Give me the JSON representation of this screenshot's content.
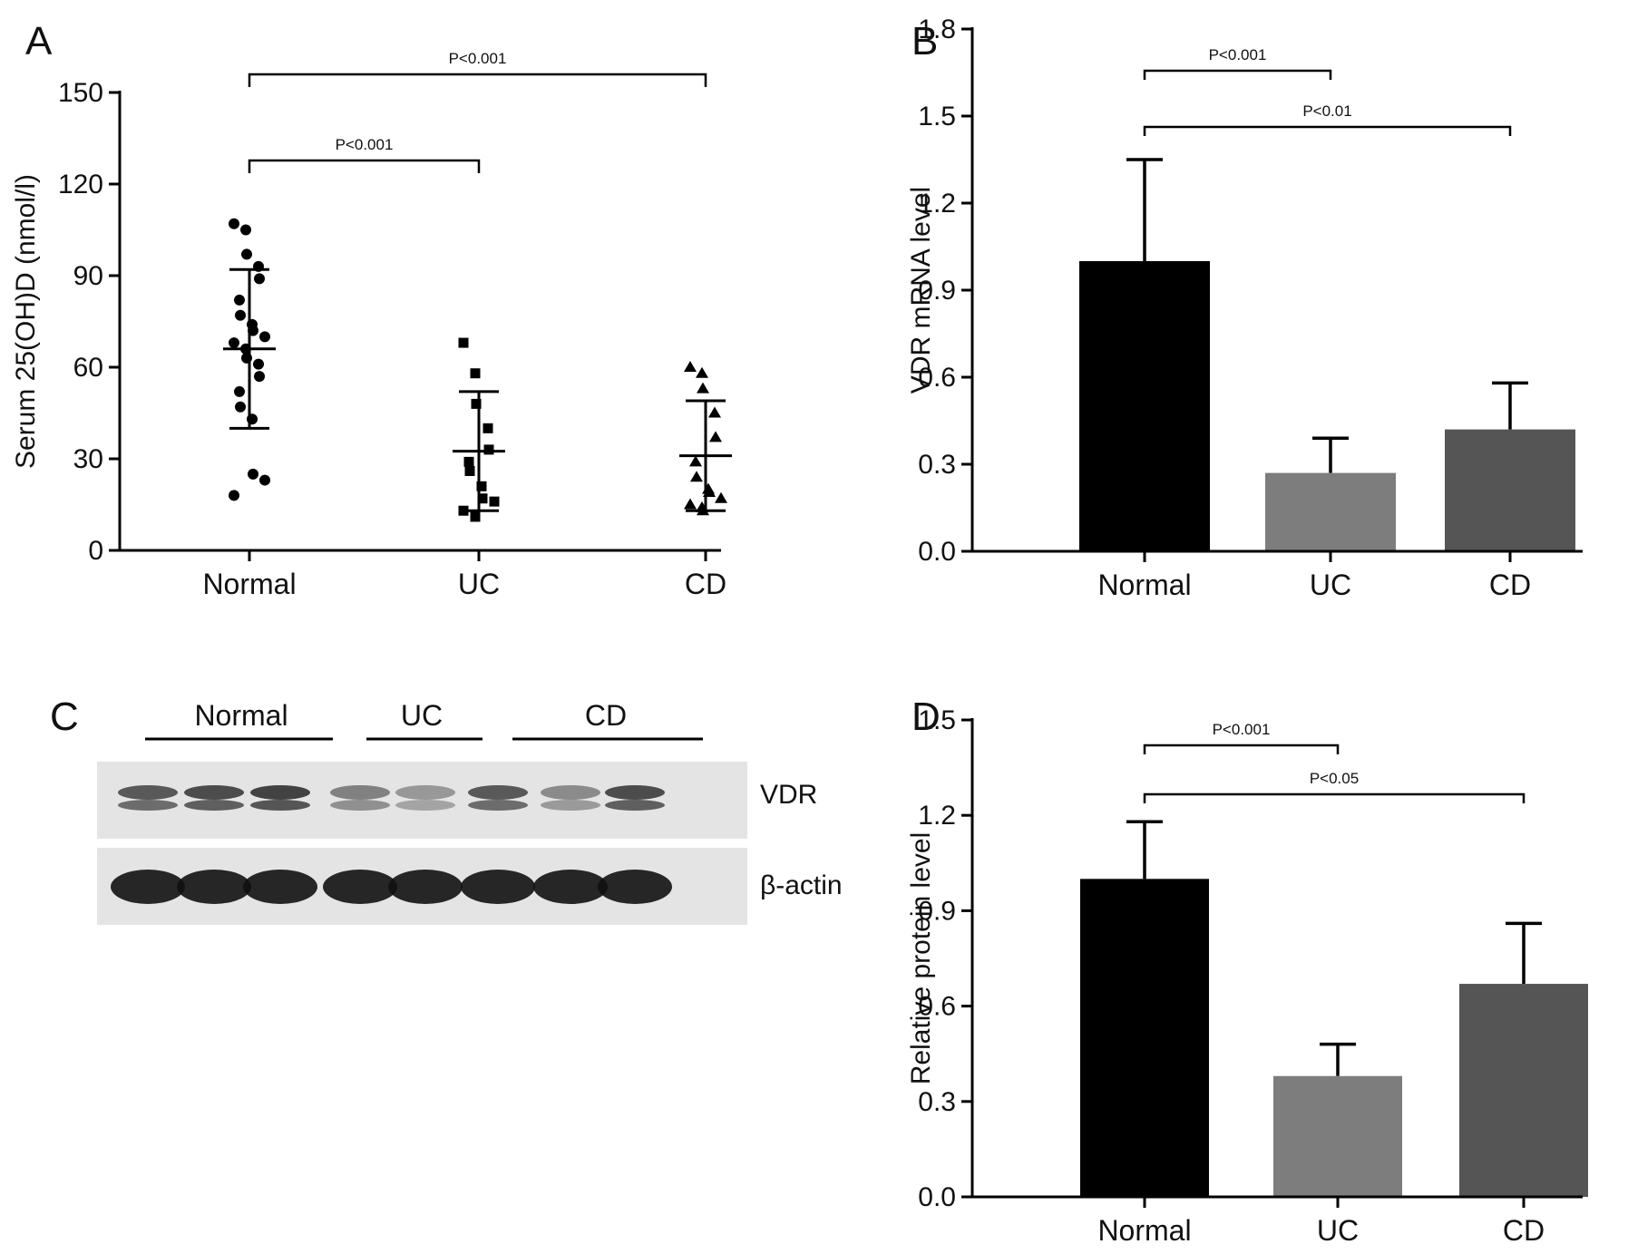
{
  "colors": {
    "axis": "#000000",
    "normal_bar": "#000000",
    "uc_bar": "#7d7d7d",
    "cd_bar": "#555555",
    "blot_bg": "#e4e4e4",
    "band": "#111111"
  },
  "chart_data": [
    {
      "panel": "A",
      "type": "scatter",
      "ylabel": "Serum 25(OH)D (nmol/l)",
      "ylim": [
        0,
        150
      ],
      "yticks": [
        "0",
        "30",
        "60",
        "90",
        "120",
        "150"
      ],
      "categories": [
        "Normal",
        "UC",
        "CD"
      ],
      "marker_shapes": [
        "circle",
        "square",
        "triangle"
      ],
      "points": [
        [
          107,
          105,
          97,
          93,
          89,
          82,
          77,
          74,
          72,
          70,
          68,
          66,
          63,
          61,
          57,
          52,
          47,
          43,
          25,
          23,
          18
        ],
        [
          68,
          58,
          48,
          40,
          33,
          29,
          26,
          21,
          17,
          16,
          13,
          11
        ],
        [
          60,
          58,
          53,
          45,
          37,
          29,
          24,
          20,
          19,
          17,
          15,
          14,
          13
        ]
      ],
      "mean": [
        66,
        32.5,
        31
      ],
      "sd": [
        26,
        19.5,
        18
      ],
      "significance": [
        {
          "from": 0,
          "to": 1,
          "label": "P<0.001"
        },
        {
          "from": 0,
          "to": 2,
          "label": "P<0.001"
        }
      ]
    },
    {
      "panel": "B",
      "type": "bar",
      "ylabel": "VDR mRNA level",
      "ylim": [
        0,
        1.8
      ],
      "yticks": [
        "0.0",
        "0.3",
        "0.6",
        "0.9",
        "1.2",
        "1.5",
        "1.8"
      ],
      "categories": [
        "Normal",
        "UC",
        "CD"
      ],
      "values": [
        1.0,
        0.27,
        0.42
      ],
      "errors": [
        0.35,
        0.12,
        0.16
      ],
      "significance": [
        {
          "from": 0,
          "to": 1,
          "label": "P<0.001"
        },
        {
          "from": 0,
          "to": 2,
          "label": "P<0.01"
        }
      ]
    },
    {
      "panel": "C",
      "type": "table",
      "groups": [
        "Normal",
        "UC",
        "CD"
      ],
      "lanes_per_group": [
        3,
        2,
        3
      ],
      "rows": [
        "VDR",
        "β-actin"
      ],
      "vdr_intensity": [
        0.75,
        0.85,
        0.95,
        0.4,
        0.2,
        0.75,
        0.3,
        0.85
      ],
      "actin_intensity": [
        1,
        1,
        1,
        1,
        1,
        1,
        1,
        1
      ]
    },
    {
      "panel": "D",
      "type": "bar",
      "ylabel": "Relative protein level",
      "ylim": [
        0,
        1.5
      ],
      "yticks": [
        "0.0",
        "0.3",
        "0.6",
        "0.9",
        "1.2",
        "1.5"
      ],
      "categories": [
        "Normal",
        "UC",
        "CD"
      ],
      "values": [
        1.0,
        0.38,
        0.67
      ],
      "errors": [
        0.18,
        0.1,
        0.19
      ],
      "significance": [
        {
          "from": 0,
          "to": 1,
          "label": "P<0.001"
        },
        {
          "from": 0,
          "to": 2,
          "label": "P<0.05"
        }
      ]
    }
  ]
}
